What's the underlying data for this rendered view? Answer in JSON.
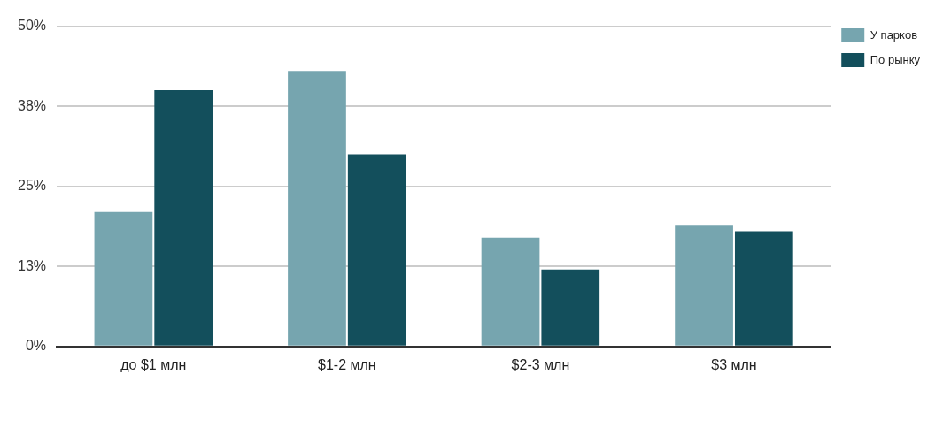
{
  "chart_data": {
    "type": "bar",
    "categories": [
      "до $1 млн",
      "$1-2 млн",
      "$2-3 млн",
      "$3 млн"
    ],
    "series": [
      {
        "name": "У парков",
        "color": "#76a5af",
        "values": [
          21,
          43,
          17,
          19
        ]
      },
      {
        "name": "По рынку",
        "color": "#134f5c",
        "values": [
          40,
          30,
          12,
          18
        ]
      }
    ],
    "ylim": [
      0,
      50
    ],
    "yticks": [
      {
        "value": 0,
        "label": "0%"
      },
      {
        "value": 12.5,
        "label": "13%"
      },
      {
        "value": 25,
        "label": "25%"
      },
      {
        "value": 37.5,
        "label": "38%"
      },
      {
        "value": 50,
        "label": "50%"
      }
    ],
    "grid": "y",
    "legend": "top right"
  }
}
